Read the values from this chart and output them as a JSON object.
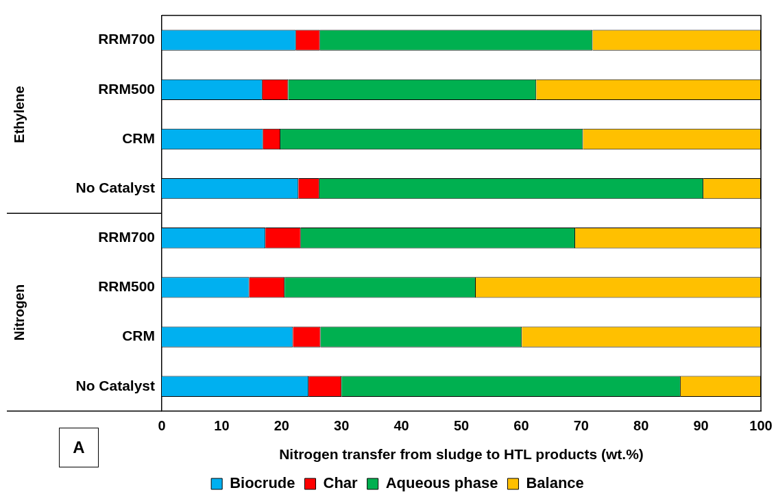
{
  "chart_data": {
    "type": "bar",
    "orientation": "horizontal",
    "stacked": true,
    "categories": [
      "RRM700",
      "RRM500",
      "CRM",
      "No Catalyst",
      "RRM700",
      "RRM500",
      "CRM",
      "No Catalyst"
    ],
    "series": [
      {
        "name": "Biocrude",
        "color": "#00b0f0",
        "values": [
          22.4,
          16.8,
          16.9,
          22.8,
          17.3,
          14.6,
          21.9,
          24.5
        ]
      },
      {
        "name": "Char",
        "color": "#ff0000",
        "values": [
          4.0,
          4.3,
          2.9,
          3.5,
          5.9,
          5.9,
          4.6,
          5.5
        ]
      },
      {
        "name": "Aqueous phase",
        "color": "#00b050",
        "values": [
          45.5,
          41.4,
          50.5,
          64.1,
          45.8,
          31.9,
          33.6,
          56.6
        ]
      },
      {
        "name": "Balance",
        "color": "#ffc000",
        "values": [
          28.1,
          37.5,
          29.7,
          9.6,
          31.0,
          47.6,
          39.9,
          13.4
        ]
      }
    ],
    "xlim": [
      0,
      100
    ],
    "xticks": [
      0,
      10,
      20,
      30,
      40,
      50,
      60,
      70,
      80,
      90,
      100
    ],
    "xlabel": "Nitrogen transfer from sludge to HTL products (wt.%)",
    "annotations": [
      "Ethylene",
      "Nitrogen",
      "A"
    ],
    "grid": false,
    "legend": "bottom"
  }
}
